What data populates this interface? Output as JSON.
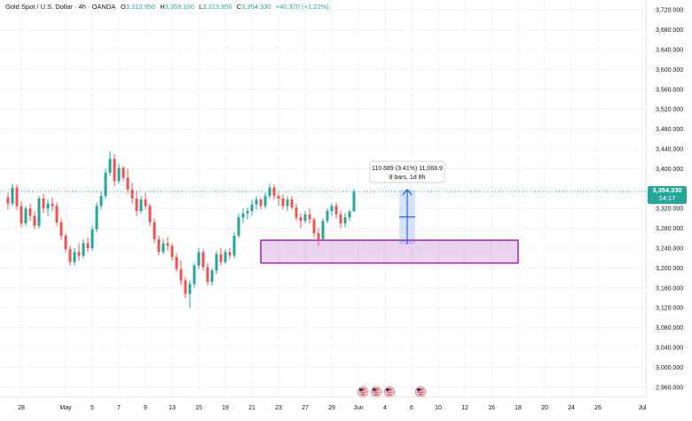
{
  "header": {
    "symbol": "Gold Spot / U.S. Dollar · 4h · OANDA",
    "ohlc": [
      {
        "k": "O",
        "v": "3,313.950"
      },
      {
        "k": "H",
        "v": "3,359.100"
      },
      {
        "k": "L",
        "v": "3,313.950"
      },
      {
        "k": "C",
        "v": "3,354.330"
      }
    ],
    "change": "+40.370 (+1.22%)"
  },
  "price_badge": {
    "price": "3,354.330",
    "countdown": "14:17"
  },
  "measure_label": {
    "line1": "110.689 (3.41%) 11,068.9",
    "line2": "8 bars, 1d 8h"
  },
  "colors": {
    "up": "#26a69a",
    "down": "#ef5350",
    "support_zone": "#9c27b0",
    "measure": "#2962ff"
  },
  "chart_data": {
    "type": "candlestick",
    "title": "Gold Spot / U.S. Dollar · 4h · OANDA",
    "ylim": [
      2940,
      3740
    ],
    "y_ticks": [
      "2,960.000",
      "3,000.000",
      "3,040.000",
      "3,080.000",
      "3,120.000",
      "3,160.000",
      "3,200.000",
      "3,240.000",
      "3,280.000",
      "3,320.000",
      "3,360.000",
      "3,400.000",
      "3,440.000",
      "3,480.000",
      "3,520.000",
      "3,560.000",
      "3,600.000",
      "3,640.000",
      "3,680.000",
      "3,720.000"
    ],
    "x_ticks": [
      {
        "label": "28",
        "i": 3
      },
      {
        "label": "May",
        "i": 13
      },
      {
        "label": "5",
        "i": 19
      },
      {
        "label": "7",
        "i": 25
      },
      {
        "label": "9",
        "i": 31
      },
      {
        "label": "13",
        "i": 37
      },
      {
        "label": "15",
        "i": 43
      },
      {
        "label": "19",
        "i": 49
      },
      {
        "label": "21",
        "i": 55
      },
      {
        "label": "23",
        "i": 61
      },
      {
        "label": "27",
        "i": 67
      },
      {
        "label": "29",
        "i": 73
      },
      {
        "label": "Jun",
        "i": 79
      },
      {
        "label": "4",
        "i": 85
      },
      {
        "label": "6",
        "i": 91
      },
      {
        "label": "10",
        "i": 97
      },
      {
        "label": "12",
        "i": 103
      },
      {
        "label": "16",
        "i": 109
      },
      {
        "label": "18",
        "i": 115
      },
      {
        "label": "20",
        "i": 121
      },
      {
        "label": "24",
        "i": 127
      },
      {
        "label": "26",
        "i": 133
      },
      {
        "label": "Jul",
        "i": 143
      }
    ],
    "candles": [
      [
        3342,
        3352,
        3318,
        3330
      ],
      [
        3330,
        3370,
        3325,
        3362
      ],
      [
        3362,
        3368,
        3318,
        3325
      ],
      [
        3325,
        3335,
        3282,
        3290
      ],
      [
        3290,
        3325,
        3285,
        3320
      ],
      [
        3320,
        3330,
        3295,
        3305
      ],
      [
        3305,
        3315,
        3278,
        3285
      ],
      [
        3285,
        3345,
        3280,
        3340
      ],
      [
        3340,
        3350,
        3310,
        3320
      ],
      [
        3320,
        3338,
        3305,
        3330
      ],
      [
        3330,
        3342,
        3315,
        3325
      ],
      [
        3325,
        3332,
        3285,
        3292
      ],
      [
        3292,
        3300,
        3258,
        3265
      ],
      [
        3265,
        3270,
        3232,
        3238
      ],
      [
        3238,
        3245,
        3205,
        3212
      ],
      [
        3212,
        3240,
        3205,
        3232
      ],
      [
        3232,
        3250,
        3215,
        3225
      ],
      [
        3225,
        3258,
        3220,
        3250
      ],
      [
        3250,
        3262,
        3232,
        3240
      ],
      [
        3240,
        3285,
        3235,
        3278
      ],
      [
        3278,
        3332,
        3272,
        3325
      ],
      [
        3325,
        3355,
        3318,
        3345
      ],
      [
        3345,
        3400,
        3340,
        3392
      ],
      [
        3392,
        3435,
        3385,
        3420
      ],
      [
        3420,
        3430,
        3365,
        3375
      ],
      [
        3375,
        3410,
        3370,
        3402
      ],
      [
        3402,
        3405,
        3375,
        3382
      ],
      [
        3382,
        3400,
        3350,
        3358
      ],
      [
        3358,
        3372,
        3330,
        3340
      ],
      [
        3340,
        3355,
        3305,
        3315
      ],
      [
        3315,
        3345,
        3310,
        3338
      ],
      [
        3338,
        3352,
        3318,
        3325
      ],
      [
        3325,
        3330,
        3285,
        3292
      ],
      [
        3292,
        3300,
        3250,
        3258
      ],
      [
        3258,
        3265,
        3225,
        3232
      ],
      [
        3232,
        3258,
        3228,
        3250
      ],
      [
        3250,
        3262,
        3235,
        3245
      ],
      [
        3245,
        3250,
        3215,
        3222
      ],
      [
        3222,
        3230,
        3192,
        3198
      ],
      [
        3198,
        3215,
        3165,
        3175
      ],
      [
        3175,
        3182,
        3140,
        3148
      ],
      [
        3148,
        3175,
        3120,
        3168
      ],
      [
        3168,
        3210,
        3160,
        3205
      ],
      [
        3205,
        3240,
        3198,
        3232
      ],
      [
        3232,
        3238,
        3195,
        3202
      ],
      [
        3202,
        3210,
        3165,
        3172
      ],
      [
        3172,
        3200,
        3165,
        3195
      ],
      [
        3195,
        3235,
        3188,
        3228
      ],
      [
        3228,
        3240,
        3205,
        3212
      ],
      [
        3212,
        3238,
        3208,
        3232
      ],
      [
        3232,
        3240,
        3218,
        3225
      ],
      [
        3225,
        3272,
        3220,
        3265
      ],
      [
        3265,
        3310,
        3260,
        3302
      ],
      [
        3302,
        3320,
        3290,
        3310
      ],
      [
        3310,
        3322,
        3298,
        3315
      ],
      [
        3315,
        3338,
        3305,
        3328
      ],
      [
        3328,
        3345,
        3318,
        3338
      ],
      [
        3338,
        3342,
        3318,
        3325
      ],
      [
        3325,
        3352,
        3320,
        3345
      ],
      [
        3345,
        3370,
        3340,
        3362
      ],
      [
        3362,
        3368,
        3338,
        3345
      ],
      [
        3345,
        3352,
        3325,
        3340
      ],
      [
        3340,
        3348,
        3318,
        3325
      ],
      [
        3325,
        3345,
        3315,
        3338
      ],
      [
        3338,
        3345,
        3318,
        3322
      ],
      [
        3322,
        3330,
        3295,
        3302
      ],
      [
        3302,
        3310,
        3280,
        3295
      ],
      [
        3295,
        3315,
        3290,
        3308
      ],
      [
        3308,
        3320,
        3290,
        3298
      ],
      [
        3298,
        3302,
        3262,
        3270
      ],
      [
        3270,
        3280,
        3245,
        3258
      ],
      [
        3258,
        3300,
        3255,
        3295
      ],
      [
        3295,
        3320,
        3290,
        3315
      ],
      [
        3315,
        3330,
        3305,
        3325
      ],
      [
        3325,
        3332,
        3300,
        3308
      ],
      [
        3308,
        3315,
        3280,
        3290
      ],
      [
        3290,
        3310,
        3282,
        3302
      ],
      [
        3302,
        3318,
        3295,
        3314
      ],
      [
        3314,
        3359,
        3314,
        3354
      ]
    ],
    "current_price": 3354.33,
    "support_zone": {
      "y_top": 3256,
      "y_bottom": 3210,
      "x_start_i": 57,
      "x_end_i": 115
    },
    "measure": {
      "from_y": 3248,
      "to_y": 3358,
      "x_i": 90,
      "change": "110.689 (3.41%) 11,068.9",
      "span": "8 bars, 1d 8h"
    },
    "events_x_i": [
      80,
      83,
      86,
      93
    ]
  }
}
